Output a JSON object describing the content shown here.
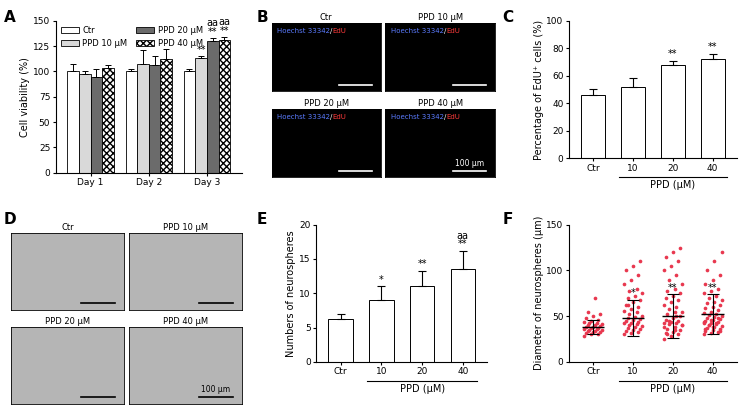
{
  "chart_data": [
    {
      "panel": "A",
      "type": "bar",
      "categories": [
        "Day 1",
        "Day 2",
        "Day 3"
      ],
      "y_label": "Cell viability (%)",
      "ylim": [
        0,
        150
      ],
      "yticks": [
        0,
        25,
        50,
        75,
        100,
        125,
        150
      ],
      "legend": "upper left",
      "series": [
        {
          "name": "Ctr",
          "color": "#ffffff",
          "values": [
            100,
            100,
            100
          ],
          "errors": [
            7,
            2,
            2
          ]
        },
        {
          "name": "PPD 10 μM",
          "color": "#d9d9d9",
          "values": [
            97,
            107,
            113
          ],
          "errors": [
            3,
            14,
            2
          ]
        },
        {
          "name": "PPD 20 μM",
          "color": "#6b6b6b",
          "values": [
            94,
            106,
            130
          ],
          "errors": [
            8,
            9,
            3
          ]
        },
        {
          "name": "PPD 40 μM",
          "color": "#ffffff",
          "values": [
            103,
            112,
            131
          ],
          "errors": [
            3,
            10,
            3
          ]
        }
      ],
      "annotations": [
        {
          "category": "Day 3",
          "series": "PPD 10 μM",
          "text": "**"
        },
        {
          "category": "Day 3",
          "series": "PPD 20 μM",
          "text": "aa\n**"
        },
        {
          "category": "Day 3",
          "series": "PPD 40 μM",
          "text": "aa\n**"
        }
      ]
    },
    {
      "panel": "B",
      "type": "image",
      "color": "#000000",
      "images": [
        "Ctr",
        "PPD 10 μM",
        "PPD 20 μM",
        "PPD 40 μM"
      ],
      "stain_labels": [
        {
          "text": "Hoechst 33342",
          "color": "#5b7bff"
        },
        {
          "text": "/",
          "color": "#ffffff"
        },
        {
          "text": "EdU",
          "color": "#ff3b3b"
        }
      ],
      "scale_bar": "100 μm"
    },
    {
      "panel": "C",
      "type": "bar",
      "categories": [
        "Ctr",
        "10",
        "20",
        "40"
      ],
      "group_label": "PPD (μM)",
      "y_label": "Percentage of EdU⁺ cells (%)",
      "ylim": [
        0,
        100
      ],
      "yticks": [
        0,
        20,
        40,
        60,
        80,
        100
      ],
      "color": "#ffffff",
      "values": [
        46,
        52,
        68,
        72
      ],
      "errors": [
        4,
        6,
        3,
        4
      ],
      "annotations": [
        {
          "category": "20",
          "text": "**"
        },
        {
          "category": "40",
          "text": "**"
        }
      ]
    },
    {
      "panel": "D",
      "type": "image",
      "color": "#b5b5b5",
      "images": [
        "Ctr",
        "PPD 10 μM",
        "PPD 20 μM",
        "PPD 40 μM"
      ],
      "scale_bar": "100 μm"
    },
    {
      "panel": "E",
      "type": "bar",
      "categories": [
        "Ctr",
        "10",
        "20",
        "40"
      ],
      "group_label": "PPD (μM)",
      "y_label": "Numbers of neurospheres",
      "ylim": [
        0,
        20
      ],
      "yticks": [
        0,
        5,
        10,
        15,
        20
      ],
      "color": "#ffffff",
      "values": [
        6.2,
        9,
        11,
        13.5
      ],
      "errors": [
        0.8,
        2,
        2.3,
        2.7
      ],
      "annotations": [
        {
          "category": "10",
          "text": "*"
        },
        {
          "category": "20",
          "text": "**"
        },
        {
          "category": "40",
          "text": "aa\n**"
        }
      ]
    },
    {
      "panel": "F",
      "type": "scatter",
      "categories": [
        "Ctr",
        "10",
        "20",
        "40"
      ],
      "group_label": "PPD (μM)",
      "y_label": "Diameter of neurospheres (μm)",
      "ylim": [
        0,
        150
      ],
      "yticks": [
        0,
        50,
        100,
        150
      ],
      "color": "#e8384f",
      "values": [
        [
          28,
          30,
          31,
          32,
          33,
          33,
          34,
          34,
          35,
          35,
          36,
          36,
          37,
          37,
          38,
          38,
          39,
          40,
          40,
          41,
          42,
          43,
          44,
          45,
          46,
          48,
          50,
          52,
          55,
          70
        ],
        [
          30,
          32,
          33,
          34,
          35,
          36,
          37,
          38,
          39,
          40,
          41,
          42,
          43,
          44,
          45,
          46,
          47,
          48,
          49,
          50,
          52,
          54,
          56,
          58,
          60,
          62,
          65,
          68,
          70,
          72,
          75,
          78,
          80,
          85,
          90,
          95,
          100,
          105,
          110,
          62
        ],
        [
          25,
          28,
          30,
          32,
          33,
          35,
          36,
          38,
          40,
          41,
          42,
          43,
          44,
          45,
          46,
          48,
          50,
          52,
          54,
          55,
          58,
          60,
          62,
          65,
          68,
          70,
          72,
          75,
          78,
          80,
          85,
          90,
          95,
          100,
          105,
          110,
          115,
          120,
          125,
          30,
          35,
          40,
          45,
          50,
          38
        ],
        [
          30,
          32,
          33,
          34,
          35,
          36,
          37,
          38,
          39,
          40,
          41,
          42,
          43,
          44,
          45,
          46,
          47,
          48,
          49,
          50,
          51,
          52,
          53,
          55,
          57,
          59,
          60,
          62,
          64,
          66,
          68,
          70,
          72,
          75,
          78,
          80,
          85,
          90,
          95,
          100,
          110,
          120,
          40,
          42,
          44,
          46,
          48,
          36,
          38,
          34
        ]
      ],
      "mean": [
        38,
        48,
        50,
        52
      ],
      "errors": [
        8,
        20,
        24,
        22
      ],
      "annotations": [
        {
          "category": "10",
          "text": "*"
        },
        {
          "category": "20",
          "text": "**"
        },
        {
          "category": "40",
          "text": "**"
        }
      ]
    }
  ]
}
